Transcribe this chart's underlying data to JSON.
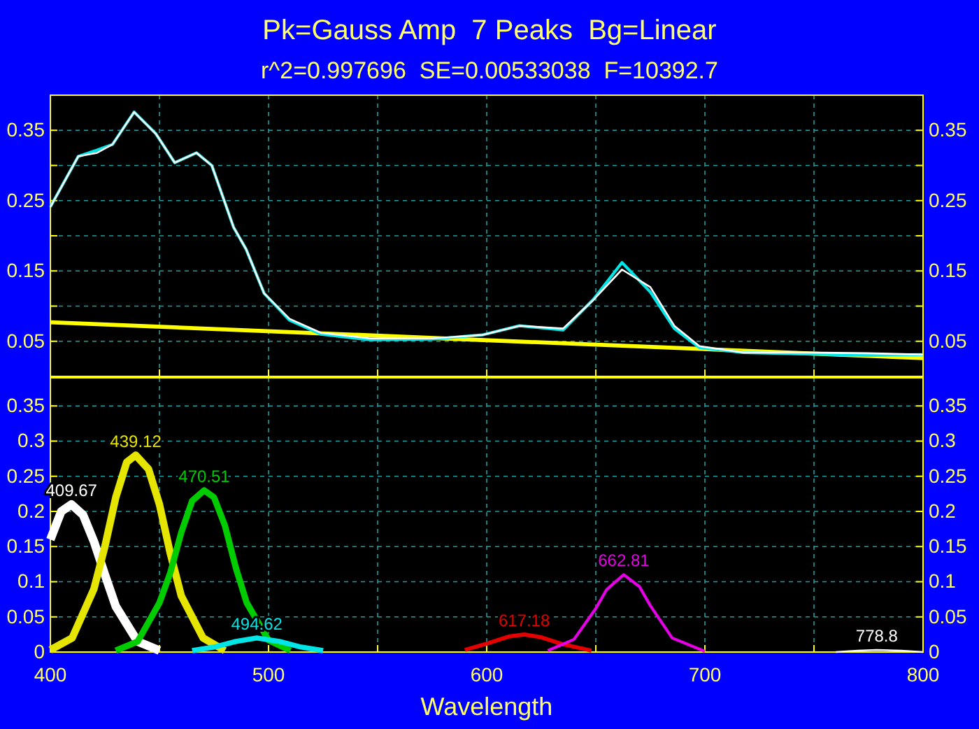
{
  "chart_data": [
    {
      "type": "line",
      "title": "Pk=Gauss Amp  7 Peaks  Bg=Linear",
      "subtitle": "r^2=0.997696  SE=0.00533038  F=10392.7",
      "xlim": [
        400,
        800
      ],
      "xticks": [
        400,
        {
          "value": 450,
          "label": null
        },
        500,
        {
          "value": 550,
          "label": null
        },
        600,
        {
          "value": 650,
          "label": null
        },
        700,
        {
          "value": 750,
          "label": null
        },
        800
      ],
      "ylim": [
        0,
        0.4
      ],
      "yticks": [
        {
          "value": 0.1,
          "label": null
        },
        {
          "value": 0.2,
          "label": null
        },
        {
          "value": 0.3,
          "label": null
        },
        0.05,
        0.15,
        0.25,
        0.35
      ],
      "y2lim": [
        0,
        0.4
      ],
      "y2ticks": [
        {
          "value": 0.1,
          "label": null
        },
        {
          "value": 0.2,
          "label": null
        },
        {
          "value": 0.3,
          "label": null
        },
        0.05,
        0.15,
        0.25,
        0.35
      ],
      "tick_labels": "y",
      "grid": true,
      "line_style": "solid",
      "series": [
        {
          "color": "#ffff00",
          "x": [
            400,
            800
          ],
          "values": [
            0.077,
            0.026
          ]
        },
        {
          "color": "#00e5e5",
          "x": [
            400,
            412.8,
            421.4,
            428.5,
            438.4,
            448.4,
            457,
            467,
            474,
            484,
            489.7,
            498,
            509.6,
            524,
            546.6,
            575,
            598,
            615,
            635,
            649,
            662,
            675,
            686,
            697.5,
            717.5,
            746,
            774,
            800
          ],
          "values": [
            0.241,
            0.313,
            0.322,
            0.33,
            0.376,
            0.345,
            0.304,
            0.318,
            0.3,
            0.212,
            0.181,
            0.118,
            0.08,
            0.06,
            0.052,
            0.053,
            0.059,
            0.072,
            0.066,
            0.11,
            0.162,
            0.12,
            0.068,
            0.041,
            0.034,
            0.032,
            0.03,
            0.031
          ]
        },
        {
          "color": "#ffffff",
          "x": [
            400,
            412.8,
            421.4,
            428.5,
            438.4,
            448.4,
            457,
            467,
            474,
            484,
            489.7,
            498,
            509.6,
            524,
            546.6,
            575,
            598,
            615,
            635,
            649,
            662,
            675,
            686,
            697.5,
            717.5,
            746,
            774,
            800
          ],
          "values": [
            0.241,
            0.313,
            0.318,
            0.33,
            0.376,
            0.345,
            0.304,
            0.318,
            0.3,
            0.212,
            0.181,
            0.118,
            0.082,
            0.062,
            0.054,
            0.054,
            0.059,
            0.072,
            0.068,
            0.109,
            0.152,
            0.127,
            0.072,
            0.043,
            0.034,
            0.034,
            0.033,
            0.031
          ]
        }
      ]
    },
    {
      "type": "line",
      "xlabel": "Wavelength",
      "xlim": [
        400,
        800
      ],
      "xticks": [
        400,
        {
          "value": 450,
          "label": null
        },
        500,
        {
          "value": 550,
          "label": null
        },
        600,
        {
          "value": 650,
          "label": null
        },
        700,
        {
          "value": 750,
          "label": null
        },
        800
      ],
      "ylim": [
        0,
        0.39
      ],
      "yticks": [
        0,
        0.05,
        0.1,
        0.15,
        0.2,
        0.25,
        0.3,
        0.35
      ],
      "y2lim": [
        0,
        0.39
      ],
      "y2ticks": [
        0,
        0.05,
        0.1,
        0.15,
        0.2,
        0.25,
        0.3,
        0.35
      ],
      "grid": true,
      "line_style": "solid",
      "series": [
        {
          "color": "#ffffff",
          "x": [
            400,
            405,
            409.67,
            415,
            420,
            425,
            430,
            440,
            450
          ],
          "values": [
            0.16,
            0.2,
            0.21,
            0.195,
            0.157,
            0.11,
            0.065,
            0.015,
            0.002
          ]
        },
        {
          "color": "#e5e500",
          "x": [
            400,
            410,
            420,
            425,
            430,
            435,
            439.12,
            445,
            450,
            455,
            460,
            470,
            480
          ],
          "values": [
            0.003,
            0.02,
            0.09,
            0.15,
            0.22,
            0.27,
            0.28,
            0.26,
            0.21,
            0.14,
            0.08,
            0.02,
            0.002
          ]
        },
        {
          "color": "#00cc00",
          "x": [
            430,
            440,
            450,
            455,
            460,
            465,
            470.51,
            475,
            480,
            485,
            490,
            500,
            510
          ],
          "values": [
            0.002,
            0.015,
            0.07,
            0.113,
            0.17,
            0.215,
            0.23,
            0.22,
            0.18,
            0.12,
            0.07,
            0.017,
            0.002
          ]
        },
        {
          "color": "#00e5e5",
          "x": [
            465,
            475,
            485,
            494.62,
            505,
            515,
            525
          ],
          "values": [
            0.002,
            0.007,
            0.015,
            0.02,
            0.015,
            0.007,
            0.002
          ]
        },
        {
          "color": "#e50000",
          "x": [
            590,
            600,
            610,
            617.18,
            625,
            635,
            648
          ],
          "values": [
            0.003,
            0.012,
            0.022,
            0.025,
            0.021,
            0.011,
            0.002
          ]
        },
        {
          "color": "#e500e5",
          "x": [
            628,
            640,
            650,
            655,
            662.81,
            670,
            675,
            685,
            700
          ],
          "values": [
            0.002,
            0.018,
            0.062,
            0.089,
            0.11,
            0.093,
            0.066,
            0.02,
            0.001
          ]
        },
        {
          "color": "#ffffff",
          "x": [
            760,
            770,
            778.8,
            790,
            800
          ],
          "values": [
            0,
            0.002,
            0.003,
            0.002,
            0
          ]
        }
      ],
      "annotations": [
        {
          "text": "409.67",
          "x": 409.67,
          "y": 0.21
        },
        {
          "text": "439.12",
          "x": 439.12,
          "y": 0.28
        },
        {
          "text": "470.51",
          "x": 470.51,
          "y": 0.23
        },
        {
          "text": "494.62",
          "x": 494.62,
          "y": 0.02
        },
        {
          "text": "617.18",
          "x": 617.18,
          "y": 0.025
        },
        {
          "text": "662.81",
          "x": 662.81,
          "y": 0.11
        },
        {
          "text": "778.8",
          "x": 778.8,
          "y": 0.003
        }
      ]
    }
  ]
}
